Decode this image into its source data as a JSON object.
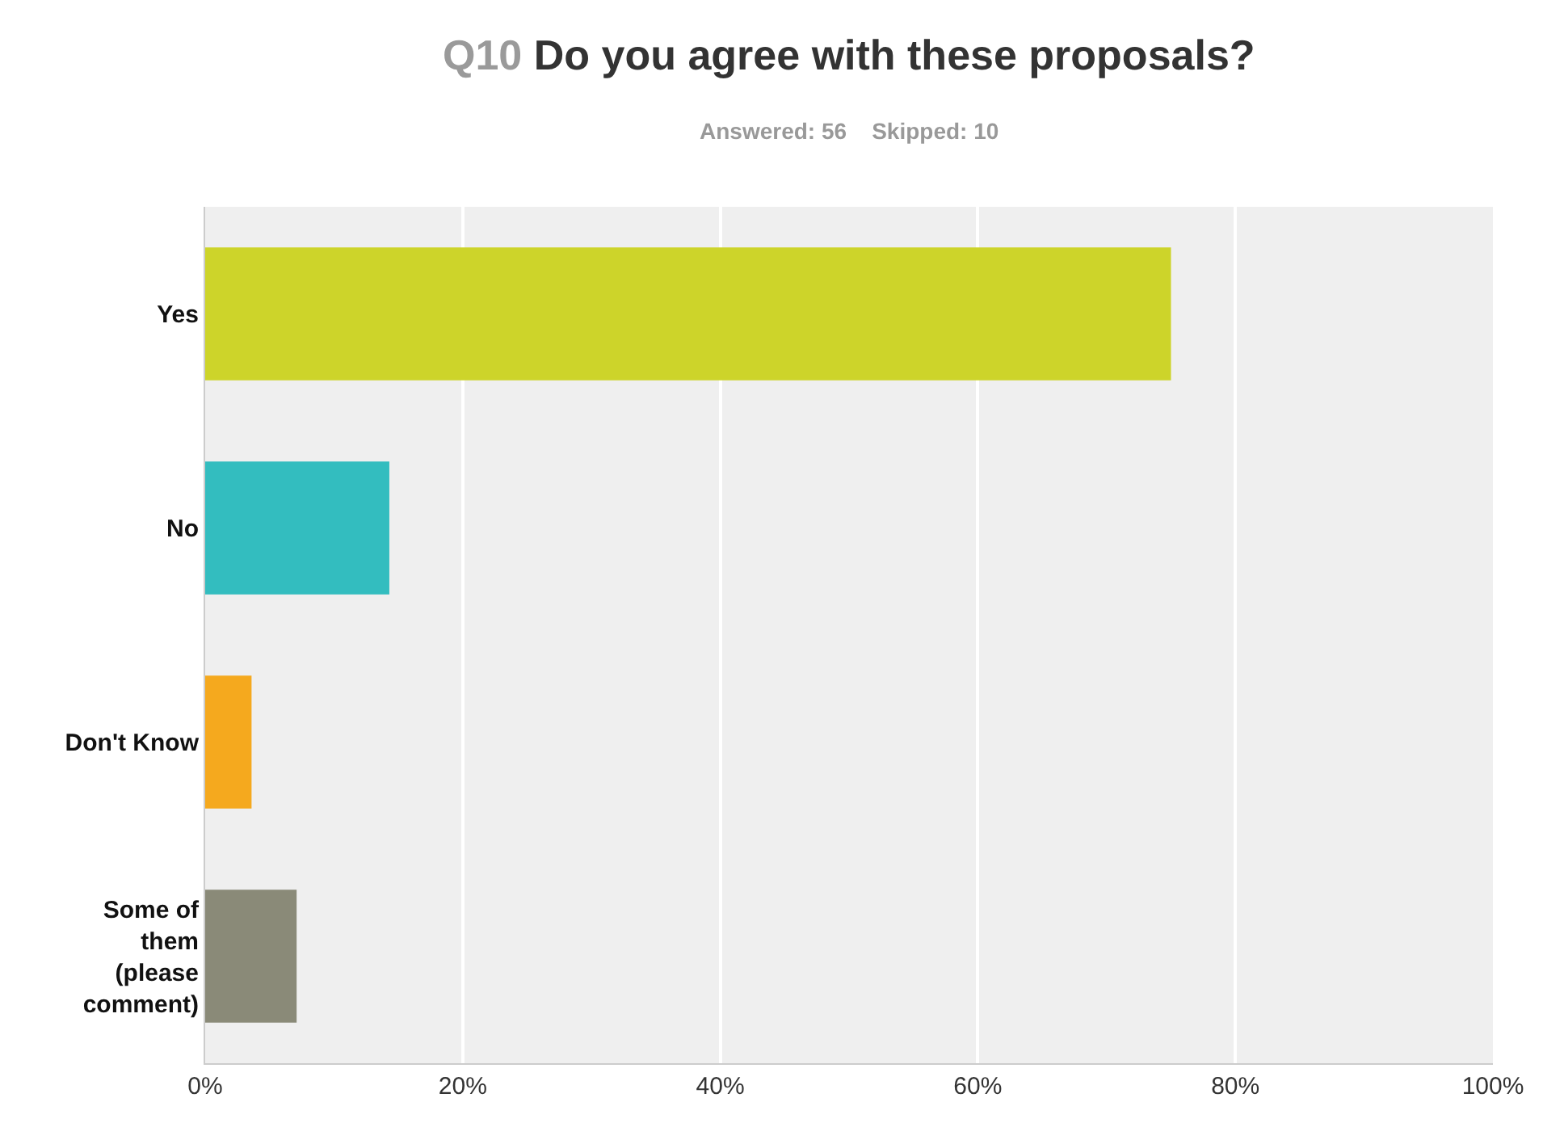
{
  "chart_data": {
    "type": "bar",
    "orientation": "horizontal",
    "title": "Q10 Do you agree with these proposals?",
    "subtitle": "Answered: 56    Skipped: 10",
    "categories": [
      "Yes",
      "No",
      "Don't Know",
      "Some of them (please comment)"
    ],
    "values": [
      75,
      14.3,
      3.6,
      7.1
    ],
    "colors": [
      "#cdd42a",
      "#33bdbf",
      "#f5a91e",
      "#8a8a78"
    ],
    "xlim": [
      0,
      100
    ],
    "xticks": [
      {
        "value": 0,
        "label": "0%"
      },
      {
        "value": 20,
        "label": "20%"
      },
      {
        "value": 40,
        "label": "40%"
      },
      {
        "value": 60,
        "label": "60%"
      },
      {
        "value": 80,
        "label": "80%"
      },
      {
        "value": 100,
        "label": "100%"
      }
    ],
    "grid": "x"
  }
}
